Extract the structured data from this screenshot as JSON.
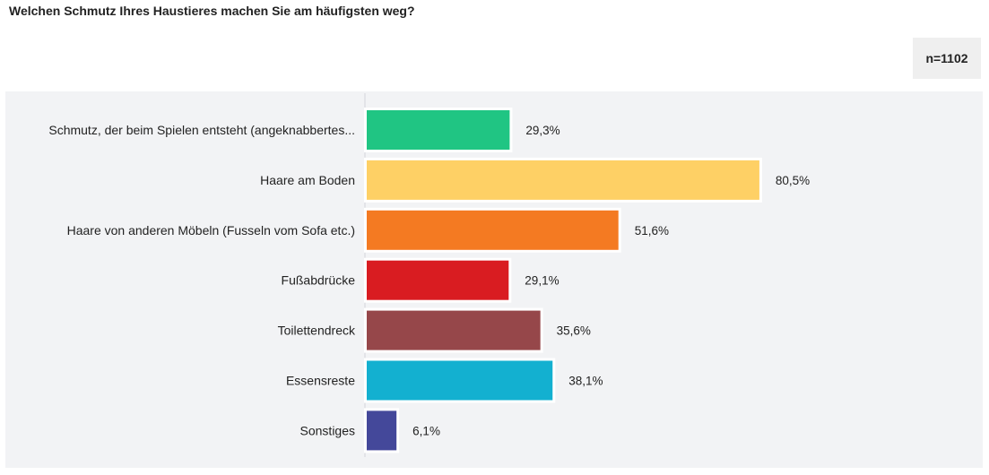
{
  "header": {
    "question": "Welchen Schmutz Ihres Haustieres machen Sie am häufigsten weg?",
    "sample_size": "n=1102"
  },
  "chart_data": {
    "type": "bar",
    "orientation": "horizontal",
    "title": "Welchen Schmutz Ihres Haustieres machen Sie am häufigsten weg?",
    "categories": [
      "Schmutz, der beim Spielen entsteht (angeknabbertes...",
      "Haare am Boden",
      "Haare von anderen Möbeln (Fusseln vom Sofa etc.)",
      "Fußabdrücke",
      "Toilettendreck",
      "Essensreste",
      "Sonstiges"
    ],
    "values": [
      29.3,
      80.5,
      51.6,
      29.1,
      35.6,
      38.1,
      6.1
    ],
    "value_labels": [
      "29,3%",
      "80,5%",
      "51,6%",
      "29,1%",
      "35,6%",
      "38,1%",
      "6,1%"
    ],
    "colors": [
      "#20c583",
      "#fed065",
      "#f47a22",
      "#d91c21",
      "#96474a",
      "#13b0d0",
      "#44489a"
    ],
    "unit": "%",
    "xlim": [
      0,
      100
    ],
    "grid": false,
    "legend": "none"
  }
}
